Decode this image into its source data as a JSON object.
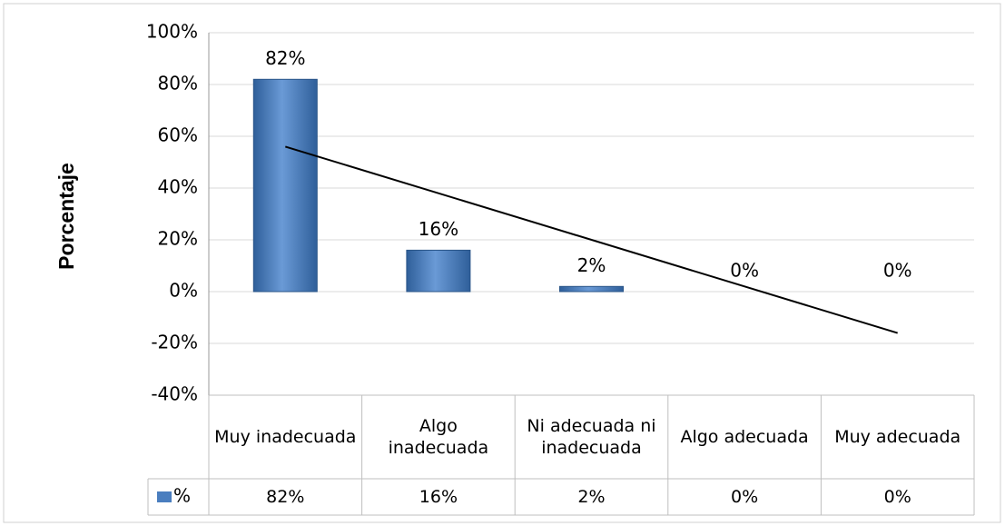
{
  "chart_data": {
    "type": "bar",
    "y_label": "Porcentaje",
    "categories": [
      "Muy inadecuada",
      "Algo inadecuada",
      "Ni adecuada ni inadecuada",
      "Algo adecuada",
      "Muy adecuada"
    ],
    "series": [
      {
        "name": "%",
        "color": "#4a7ebf",
        "values": [
          82,
          16,
          2,
          0,
          0
        ],
        "value_labels": [
          "82%",
          "16%",
          "2%",
          "0%",
          "0%"
        ]
      }
    ],
    "ylim": [
      -40,
      100
    ],
    "yticks": [
      {
        "value": -40,
        "label": "-40%"
      },
      {
        "value": -20,
        "label": "-20%"
      },
      {
        "value": 0,
        "label": "0%"
      },
      {
        "value": 20,
        "label": "20%"
      },
      {
        "value": 40,
        "label": "40%"
      },
      {
        "value": 60,
        "label": "60%"
      },
      {
        "value": 80,
        "label": "80%"
      },
      {
        "value": 100,
        "label": "100%"
      }
    ],
    "grid": true,
    "trendline": "linear",
    "data_table": true
  }
}
